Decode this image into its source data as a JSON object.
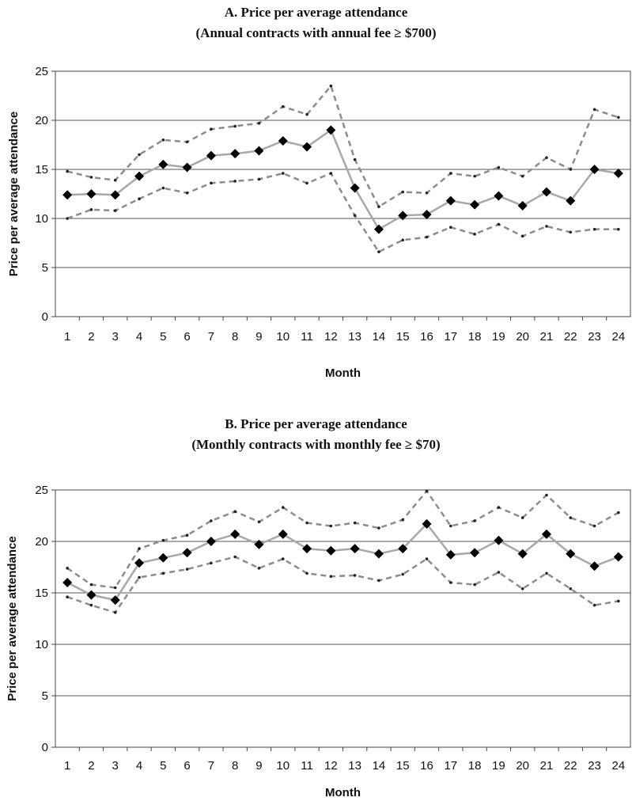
{
  "chart_data": [
    {
      "type": "line",
      "title": "A.  Price per average attendance",
      "subtitle": "(Annual contracts with annual fee ≥ $700)",
      "xlabel": "Month",
      "ylabel": "Price per average attendance",
      "ylim": [
        0,
        25
      ],
      "yticks": [
        0,
        5,
        10,
        15,
        20,
        25
      ],
      "categories": [
        "1",
        "2",
        "3",
        "4",
        "5",
        "6",
        "7",
        "8",
        "9",
        "10",
        "11",
        "12",
        "13",
        "14",
        "15",
        "16",
        "17",
        "18",
        "19",
        "20",
        "21",
        "22",
        "23",
        "24"
      ],
      "grid": true,
      "series": [
        {
          "role": "upper-band",
          "style": "dashed",
          "color": "#8c8c8c",
          "values": [
            14.8,
            14.2,
            13.9,
            16.5,
            18.0,
            17.8,
            19.1,
            19.4,
            19.7,
            21.4,
            20.6,
            23.5,
            16.0,
            11.2,
            12.7,
            12.6,
            14.6,
            14.3,
            15.2,
            14.3,
            16.2,
            15.0,
            21.1,
            20.3
          ]
        },
        {
          "role": "mean",
          "style": "solid",
          "color": "#a8a8a8",
          "marker": "diamond",
          "values": [
            12.4,
            12.5,
            12.4,
            14.3,
            15.5,
            15.2,
            16.4,
            16.6,
            16.9,
            17.9,
            17.3,
            19.0,
            13.1,
            8.9,
            10.3,
            10.4,
            11.8,
            11.4,
            12.3,
            11.3,
            12.7,
            11.8,
            15.0,
            14.6
          ]
        },
        {
          "role": "lower-band",
          "style": "dashed",
          "color": "#8c8c8c",
          "values": [
            10.0,
            10.9,
            10.8,
            12.0,
            13.1,
            12.6,
            13.6,
            13.8,
            14.0,
            14.6,
            13.6,
            14.6,
            10.3,
            6.6,
            7.8,
            8.1,
            9.1,
            8.4,
            9.4,
            8.2,
            9.2,
            8.6,
            8.9,
            8.9
          ]
        }
      ]
    },
    {
      "type": "line",
      "title": "B.  Price per average attendance",
      "subtitle": "(Monthly contracts with monthly fee ≥ $70)",
      "xlabel": "Month",
      "ylabel": "Price per average attendance",
      "ylim": [
        0,
        25
      ],
      "yticks": [
        0,
        5,
        10,
        15,
        20,
        25
      ],
      "categories": [
        "1",
        "2",
        "3",
        "4",
        "5",
        "6",
        "7",
        "8",
        "9",
        "10",
        "11",
        "12",
        "13",
        "14",
        "15",
        "16",
        "17",
        "18",
        "19",
        "20",
        "21",
        "22",
        "23",
        "24"
      ],
      "grid": true,
      "series": [
        {
          "role": "upper-band",
          "style": "dashed",
          "color": "#8c8c8c",
          "values": [
            17.4,
            15.8,
            15.5,
            19.3,
            20.1,
            20.6,
            22.0,
            22.9,
            21.9,
            23.3,
            21.8,
            21.5,
            21.8,
            21.3,
            22.1,
            24.9,
            21.5,
            22.0,
            23.3,
            22.3,
            24.5,
            22.3,
            21.5,
            22.8
          ]
        },
        {
          "role": "mean",
          "style": "solid",
          "color": "#a8a8a8",
          "marker": "diamond",
          "values": [
            16.0,
            14.8,
            14.3,
            17.9,
            18.4,
            18.9,
            20.0,
            20.7,
            19.7,
            20.7,
            19.3,
            19.1,
            19.3,
            18.8,
            19.3,
            21.7,
            18.7,
            18.9,
            20.1,
            18.8,
            20.7,
            18.8,
            17.6,
            18.5
          ]
        },
        {
          "role": "lower-band",
          "style": "dashed",
          "color": "#8c8c8c",
          "values": [
            14.6,
            13.8,
            13.1,
            16.5,
            16.9,
            17.3,
            17.9,
            18.5,
            17.4,
            18.3,
            16.9,
            16.6,
            16.7,
            16.2,
            16.8,
            18.3,
            16.0,
            15.8,
            17.0,
            15.4,
            16.9,
            15.4,
            13.8,
            14.2
          ]
        }
      ]
    }
  ]
}
